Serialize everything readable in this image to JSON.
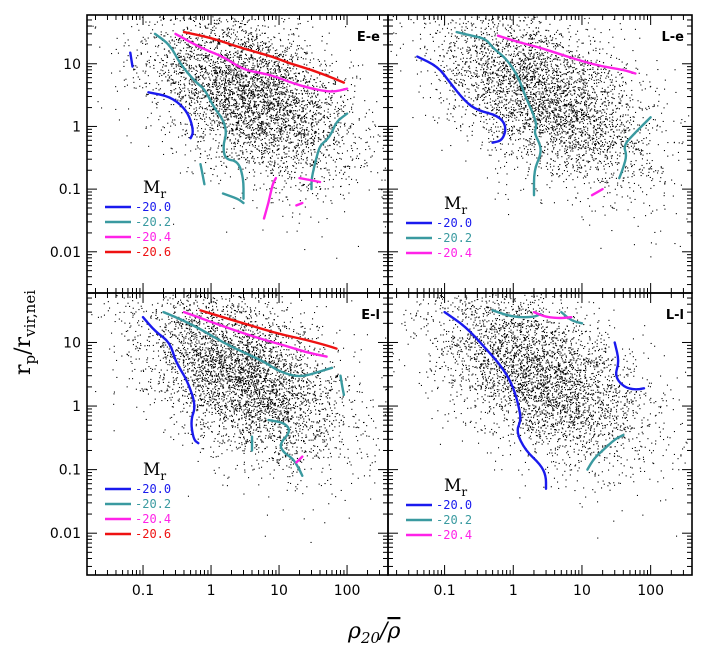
{
  "chart_data": {
    "type": "scatter",
    "layout": "2x2 grid, shared axes, log-log",
    "xlabel": "ρ20/ρ̄",
    "xlabel_main": "ρ",
    "xlabel_sub": "20",
    "xlabel_slash": "/",
    "xlabel_bar": "ρ",
    "ylabel_main": "r",
    "ylabel_sub1": "p",
    "ylabel_slash": "/",
    "ylabel_main2": "r",
    "ylabel_sub2": "vir,nei",
    "xscale": "log",
    "yscale": "log",
    "xlim": [
      0.015,
      400
    ],
    "ylim": [
      0.0022,
      60
    ],
    "xticks": [
      0.1,
      1,
      10,
      100
    ],
    "xtick_labels": [
      "0.1",
      "1",
      "10",
      "100"
    ],
    "yticks": [
      0.01,
      0.1,
      1,
      10
    ],
    "ytick_labels": [
      "0.01",
      "0.1",
      "1",
      "10"
    ],
    "scatter_color": "#000000",
    "series_colors": {
      "-20.0": "#1a1aee",
      "-20.2": "#3a9aa0",
      "-20.4": "#ff22e8",
      "-20.6": "#ee1111"
    },
    "panels": [
      {
        "id": "E-e",
        "label": "E-e",
        "legend_title_main": "M",
        "legend_title_sub": "r",
        "legend": [
          "-20.0",
          "-20.2",
          "-20.4",
          "-20.6"
        ],
        "scatter": {
          "center_x": 4,
          "center_y": 3,
          "slope": -0.42,
          "spread_x": 0.75,
          "spread_y": 0.6,
          "count": 4200
        },
        "contours": [
          {
            "mag": "-20.0",
            "points": [
              [
                0.065,
                15
              ],
              [
                0.07,
                9
              ]
            ]
          },
          {
            "mag": "-20.0",
            "points": [
              [
                0.12,
                3.5
              ],
              [
                0.25,
                3
              ],
              [
                0.4,
                2
              ],
              [
                0.5,
                1.3
              ],
              [
                0.55,
                0.8
              ],
              [
                0.5,
                0.65
              ]
            ]
          },
          {
            "mag": "-20.2",
            "points": [
              [
                0.15,
                30
              ],
              [
                0.25,
                20
              ],
              [
                0.35,
                10
              ],
              [
                0.6,
                5
              ],
              [
                0.8,
                4
              ],
              [
                1.1,
                2
              ],
              [
                1.5,
                1.3
              ],
              [
                1.7,
                0.8
              ],
              [
                1.5,
                0.5
              ],
              [
                1.6,
                0.3
              ],
              [
                2.5,
                0.28
              ],
              [
                3,
                0.15
              ],
              [
                3,
                0.07
              ]
            ]
          },
          {
            "mag": "-20.2",
            "points": [
              [
                0.7,
                0.25
              ],
              [
                0.8,
                0.12
              ]
            ]
          },
          {
            "mag": "-20.2",
            "points": [
              [
                1.5,
                0.085
              ],
              [
                2.5,
                0.07
              ],
              [
                3,
                0.06
              ]
            ]
          },
          {
            "mag": "-20.2",
            "points": [
              [
                100,
                1.6
              ],
              [
                70,
                1.2
              ],
              [
                60,
                0.8
              ],
              [
                50,
                0.6
              ],
              [
                40,
                0.5
              ],
              [
                35,
                0.3
              ],
              [
                30,
                0.15
              ],
              [
                30,
                0.1
              ]
            ]
          },
          {
            "mag": "-20.4",
            "points": [
              [
                0.3,
                30
              ],
              [
                0.5,
                22
              ],
              [
                0.8,
                17
              ],
              [
                1.5,
                13
              ],
              [
                3,
                8
              ],
              [
                6,
                7
              ],
              [
                10,
                6
              ],
              [
                15,
                5
              ],
              [
                30,
                4
              ],
              [
                60,
                3.5
              ],
              [
                100,
                4
              ]
            ]
          },
          {
            "mag": "-20.4",
            "points": [
              [
                9,
                0.15
              ],
              [
                8,
                0.12
              ],
              [
                7,
                0.06
              ],
              [
                6,
                0.034
              ]
            ]
          },
          {
            "mag": "-20.4",
            "points": [
              [
                20,
                0.15
              ],
              [
                40,
                0.13
              ]
            ]
          },
          {
            "mag": "-20.4",
            "points": [
              [
                18,
                0.055
              ],
              [
                22,
                0.06
              ]
            ]
          },
          {
            "mag": "-20.6",
            "points": [
              [
                0.4,
                32
              ],
              [
                1,
                26
              ],
              [
                2,
                20
              ],
              [
                4,
                16
              ],
              [
                8,
                13
              ],
              [
                15,
                10
              ],
              [
                30,
                8
              ],
              [
                60,
                6
              ],
              [
                90,
                5
              ]
            ]
          }
        ]
      },
      {
        "id": "L-e",
        "label": "L-e",
        "legend_title_main": "M",
        "legend_title_sub": "r",
        "legend": [
          "-20.0",
          "-20.2",
          "-20.4"
        ],
        "scatter": {
          "center_x": 3,
          "center_y": 3,
          "slope": -0.45,
          "spread_x": 0.8,
          "spread_y": 0.6,
          "count": 3800
        },
        "contours": [
          {
            "mag": "-20.0",
            "points": [
              [
                0.04,
                13
              ],
              [
                0.08,
                9
              ],
              [
                0.12,
                5
              ],
              [
                0.2,
                2.5
              ],
              [
                0.3,
                1.8
              ],
              [
                0.6,
                1.5
              ],
              [
                0.8,
                1
              ],
              [
                0.7,
                0.6
              ],
              [
                0.5,
                0.55
              ]
            ]
          },
          {
            "mag": "-20.2",
            "points": [
              [
                0.15,
                32
              ],
              [
                0.25,
                28
              ],
              [
                0.4,
                25
              ],
              [
                0.5,
                18
              ],
              [
                0.8,
                12
              ],
              [
                1.2,
                6
              ],
              [
                1.5,
                3
              ],
              [
                2,
                1.5
              ],
              [
                2.2,
                1
              ],
              [
                2,
                0.8
              ],
              [
                2.5,
                0.5
              ],
              [
                2.5,
                0.35
              ],
              [
                2,
                0.2
              ],
              [
                2,
                0.08
              ]
            ]
          },
          {
            "mag": "-20.2",
            "points": [
              [
                100,
                1.4
              ],
              [
                80,
                1.1
              ],
              [
                60,
                0.8
              ],
              [
                40,
                0.5
              ],
              [
                45,
                0.35
              ],
              [
                40,
                0.22
              ],
              [
                35,
                0.15
              ]
            ]
          },
          {
            "mag": "-20.4",
            "points": [
              [
                0.6,
                28
              ],
              [
                1.2,
                22
              ],
              [
                2.5,
                18
              ],
              [
                5,
                14
              ],
              [
                10,
                11
              ],
              [
                20,
                9
              ],
              [
                40,
                8
              ],
              [
                60,
                7
              ]
            ]
          },
          {
            "mag": "-20.4",
            "points": [
              [
                14,
                0.08
              ],
              [
                20,
                0.1
              ]
            ]
          }
        ]
      },
      {
        "id": "E-l",
        "label": "E-l",
        "legend_title_main": "M",
        "legend_title_sub": "r",
        "legend": [
          "-20.0",
          "-20.2",
          "-20.4",
          "-20.6"
        ],
        "scatter": {
          "center_x": 3,
          "center_y": 3,
          "slope": -0.42,
          "spread_x": 0.75,
          "spread_y": 0.6,
          "count": 4200
        },
        "contours": [
          {
            "mag": "-20.0",
            "points": [
              [
                0.1,
                25
              ],
              [
                0.15,
                15
              ],
              [
                0.25,
                10
              ],
              [
                0.3,
                5
              ],
              [
                0.45,
                2.5
              ],
              [
                0.6,
                1
              ],
              [
                0.5,
                0.6
              ],
              [
                0.55,
                0.3
              ],
              [
                0.65,
                0.26
              ]
            ]
          },
          {
            "mag": "-20.2",
            "points": [
              [
                0.2,
                30
              ],
              [
                0.4,
                22
              ],
              [
                0.8,
                15
              ],
              [
                1.5,
                10
              ],
              [
                3,
                7
              ],
              [
                6,
                5
              ],
              [
                10,
                3.5
              ],
              [
                20,
                2.8
              ],
              [
                40,
                3.5
              ],
              [
                60,
                4
              ]
            ]
          },
          {
            "mag": "-20.2",
            "points": [
              [
                7,
                0.6
              ],
              [
                12,
                0.55
              ],
              [
                15,
                0.4
              ],
              [
                10,
                0.25
              ],
              [
                12,
                0.18
              ],
              [
                16,
                0.15
              ],
              [
                20,
                0.1
              ],
              [
                22,
                0.08
              ]
            ]
          },
          {
            "mag": "-20.2",
            "points": [
              [
                4,
                0.33
              ],
              [
                4,
                0.2
              ]
            ]
          },
          {
            "mag": "-20.2",
            "points": [
              [
                80,
                3
              ],
              [
                85,
                2
              ],
              [
                90,
                1.5
              ]
            ]
          },
          {
            "mag": "-20.4",
            "points": [
              [
                0.4,
                30
              ],
              [
                0.8,
                23
              ],
              [
                1.5,
                18
              ],
              [
                3,
                14
              ],
              [
                6,
                11
              ],
              [
                12,
                9
              ],
              [
                25,
                7
              ],
              [
                50,
                6
              ]
            ]
          },
          {
            "mag": "-20.4",
            "points": [
              [
                18,
                0.13
              ],
              [
                22,
                0.16
              ]
            ]
          },
          {
            "mag": "-20.6",
            "points": [
              [
                0.7,
                32
              ],
              [
                1.5,
                25
              ],
              [
                3,
                20
              ],
              [
                6,
                16
              ],
              [
                12,
                13
              ],
              [
                25,
                11
              ],
              [
                50,
                9
              ],
              [
                70,
                8
              ]
            ]
          }
        ]
      },
      {
        "id": "L-l",
        "label": "L-l",
        "legend_title_main": "M",
        "legend_title_sub": "r",
        "legend": [
          "-20.0",
          "-20.2",
          "-20.4"
        ],
        "scatter": {
          "center_x": 2.5,
          "center_y": 3,
          "slope": -0.45,
          "spread_x": 0.8,
          "spread_y": 0.6,
          "count": 3800
        },
        "contours": [
          {
            "mag": "-20.0",
            "points": [
              [
                0.1,
                30
              ],
              [
                0.2,
                18
              ],
              [
                0.4,
                8
              ],
              [
                0.7,
                4
              ],
              [
                1,
                2
              ],
              [
                1.2,
                1
              ],
              [
                1.3,
                0.6
              ],
              [
                1.1,
                0.4
              ],
              [
                1.5,
                0.2
              ],
              [
                2.5,
                0.12
              ],
              [
                3,
                0.08
              ],
              [
                3,
                0.05
              ]
            ]
          },
          {
            "mag": "-20.0",
            "points": [
              [
                30,
                10
              ],
              [
                35,
                5
              ],
              [
                30,
                3
              ],
              [
                40,
                2
              ],
              [
                60,
                1.8
              ],
              [
                80,
                1.9
              ]
            ]
          },
          {
            "mag": "-20.2",
            "points": [
              [
                0.5,
                32
              ],
              [
                1,
                25
              ],
              [
                2,
                25
              ],
              [
                2.5,
                28
              ]
            ]
          },
          {
            "mag": "-20.2",
            "points": [
              [
                12,
                0.1
              ],
              [
                15,
                0.15
              ],
              [
                20,
                0.2
              ],
              [
                30,
                0.3
              ],
              [
                40,
                0.35
              ]
            ]
          },
          {
            "mag": "-20.2",
            "points": [
              [
                5,
                30
              ],
              [
                7,
                22
              ],
              [
                10,
                20
              ]
            ]
          },
          {
            "mag": "-20.4",
            "points": [
              [
                2,
                30
              ],
              [
                3,
                25
              ],
              [
                5,
                24
              ],
              [
                7,
                25
              ]
            ]
          }
        ]
      }
    ]
  }
}
